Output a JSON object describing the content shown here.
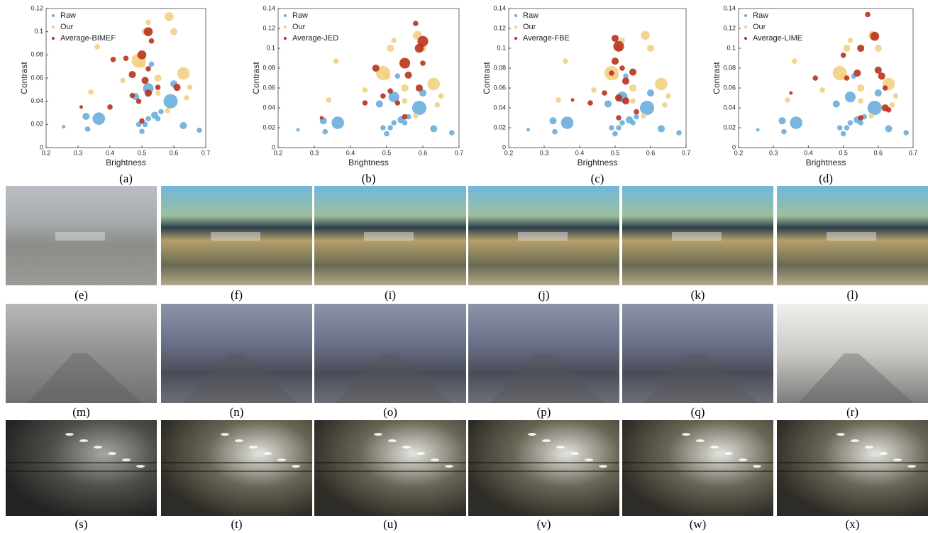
{
  "chart_data": [
    {
      "type": "scatter",
      "caption": "(a)",
      "xlabel": "Brightness",
      "ylabel": "Contrast",
      "xlim": [
        0.2,
        0.7
      ],
      "ylim": [
        0,
        0.12
      ],
      "xticks": [
        0.2,
        0.3,
        0.4,
        0.5,
        0.6,
        0.7
      ],
      "yticks": [
        0,
        0.02,
        0.04,
        0.06,
        0.08,
        0.1,
        0.12
      ],
      "series": [
        {
          "name": "Raw",
          "color": "#6aaedb",
          "x": [
            0.255,
            0.325,
            0.33,
            0.365,
            0.48,
            0.49,
            0.5,
            0.51,
            0.52,
            0.53,
            0.54,
            0.55,
            0.56,
            0.59,
            0.6,
            0.63,
            0.68,
            0.52
          ],
          "values": [
            0.018,
            0.027,
            0.016,
            0.025,
            0.044,
            0.02,
            0.014,
            0.02,
            0.051,
            0.072,
            0.028,
            0.025,
            0.031,
            0.04,
            0.055,
            0.019,
            0.015,
            0.025
          ],
          "sizes": [
            1,
            3,
            2,
            6,
            3,
            2,
            2,
            2,
            5,
            2,
            3,
            2,
            2,
            7,
            3,
            3,
            2,
            2
          ]
        },
        {
          "name": "Our",
          "color": "#f3d083",
          "x": [
            0.36,
            0.44,
            0.49,
            0.5,
            0.51,
            0.52,
            0.55,
            0.585,
            0.6,
            0.63,
            0.64,
            0.65,
            0.55,
            0.58,
            0.34
          ],
          "values": [
            0.087,
            0.058,
            0.075,
            0.072,
            0.1,
            0.108,
            0.06,
            0.113,
            0.1,
            0.064,
            0.043,
            0.052,
            0.047,
            0.032,
            0.048
          ],
          "sizes": [
            2,
            2,
            7,
            3,
            3,
            2,
            3,
            4,
            3,
            6,
            2,
            2,
            2,
            2,
            2
          ]
        },
        {
          "name": "Average-BIMEF",
          "color": "#b8321d",
          "x": [
            0.31,
            0.4,
            0.41,
            0.45,
            0.47,
            0.49,
            0.5,
            0.51,
            0.52,
            0.52,
            0.52,
            0.53,
            0.55,
            0.47,
            0.5,
            0.61
          ],
          "values": [
            0.035,
            0.035,
            0.076,
            0.077,
            0.045,
            0.04,
            0.08,
            0.058,
            0.047,
            0.068,
            0.1,
            0.092,
            0.052,
            0.063,
            0.023,
            0.052
          ],
          "sizes": [
            1,
            2,
            2,
            2,
            2,
            2,
            4,
            3,
            3,
            2,
            4,
            2,
            2,
            3,
            2,
            3
          ]
        }
      ]
    },
    {
      "type": "scatter",
      "caption": "(b)",
      "xlabel": "Brightness",
      "ylabel": "Contrast",
      "xlim": [
        0.2,
        0.7
      ],
      "ylim": [
        0,
        0.14
      ],
      "xticks": [
        0.2,
        0.3,
        0.4,
        0.5,
        0.6,
        0.7
      ],
      "yticks": [
        0,
        0.02,
        0.04,
        0.06,
        0.08,
        0.1,
        0.12,
        0.14
      ],
      "series": [
        {
          "name": "Raw",
          "color": "#6aaedb",
          "x": [
            0.255,
            0.325,
            0.33,
            0.365,
            0.48,
            0.49,
            0.5,
            0.51,
            0.52,
            0.53,
            0.54,
            0.55,
            0.56,
            0.59,
            0.6,
            0.63,
            0.68,
            0.52
          ],
          "values": [
            0.018,
            0.027,
            0.016,
            0.025,
            0.044,
            0.02,
            0.014,
            0.02,
            0.051,
            0.072,
            0.028,
            0.025,
            0.031,
            0.04,
            0.055,
            0.019,
            0.015,
            0.025
          ],
          "sizes": [
            1,
            3,
            2,
            6,
            3,
            2,
            2,
            2,
            5,
            2,
            3,
            2,
            2,
            7,
            3,
            3,
            2,
            2
          ]
        },
        {
          "name": "Our",
          "color": "#f3d083",
          "x": [
            0.36,
            0.44,
            0.49,
            0.5,
            0.51,
            0.52,
            0.55,
            0.585,
            0.6,
            0.63,
            0.64,
            0.65,
            0.55,
            0.58,
            0.34
          ],
          "values": [
            0.087,
            0.058,
            0.075,
            0.072,
            0.1,
            0.108,
            0.06,
            0.113,
            0.1,
            0.064,
            0.043,
            0.052,
            0.047,
            0.032,
            0.048
          ],
          "sizes": [
            2,
            2,
            7,
            3,
            3,
            2,
            3,
            4,
            3,
            6,
            2,
            2,
            2,
            2,
            2
          ]
        },
        {
          "name": "Average-JED",
          "color": "#b8321d",
          "x": [
            0.32,
            0.44,
            0.47,
            0.49,
            0.53,
            0.55,
            0.56,
            0.58,
            0.59,
            0.59,
            0.6,
            0.55,
            0.51,
            0.6
          ],
          "values": [
            0.03,
            0.045,
            0.08,
            0.052,
            0.045,
            0.085,
            0.073,
            0.125,
            0.1,
            0.06,
            0.107,
            0.031,
            0.057,
            0.085
          ],
          "sizes": [
            1,
            2,
            3,
            2,
            2,
            5,
            3,
            2,
            4,
            3,
            5,
            2,
            2,
            2
          ]
        }
      ]
    },
    {
      "type": "scatter",
      "caption": "(c)",
      "xlabel": "Brightness",
      "ylabel": "Contrast",
      "xlim": [
        0.2,
        0.7
      ],
      "ylim": [
        0,
        0.14
      ],
      "xticks": [
        0.2,
        0.3,
        0.4,
        0.5,
        0.6,
        0.7
      ],
      "yticks": [
        0,
        0.02,
        0.04,
        0.06,
        0.08,
        0.1,
        0.12,
        0.14
      ],
      "series": [
        {
          "name": "Raw",
          "color": "#6aaedb",
          "x": [
            0.255,
            0.325,
            0.33,
            0.365,
            0.48,
            0.49,
            0.5,
            0.51,
            0.52,
            0.53,
            0.54,
            0.55,
            0.56,
            0.59,
            0.6,
            0.63,
            0.68,
            0.52
          ],
          "values": [
            0.018,
            0.027,
            0.016,
            0.025,
            0.044,
            0.02,
            0.014,
            0.02,
            0.051,
            0.072,
            0.028,
            0.025,
            0.031,
            0.04,
            0.055,
            0.019,
            0.015,
            0.025
          ],
          "sizes": [
            1,
            3,
            2,
            6,
            3,
            2,
            2,
            2,
            5,
            2,
            3,
            2,
            2,
            7,
            3,
            3,
            2,
            2
          ]
        },
        {
          "name": "Our",
          "color": "#f3d083",
          "x": [
            0.36,
            0.44,
            0.49,
            0.5,
            0.51,
            0.52,
            0.55,
            0.585,
            0.6,
            0.63,
            0.64,
            0.65,
            0.55,
            0.58,
            0.34
          ],
          "values": [
            0.087,
            0.058,
            0.075,
            0.072,
            0.1,
            0.108,
            0.06,
            0.113,
            0.1,
            0.064,
            0.043,
            0.052,
            0.047,
            0.032,
            0.048
          ],
          "sizes": [
            2,
            2,
            7,
            3,
            3,
            2,
            3,
            4,
            3,
            6,
            2,
            2,
            2,
            2,
            2
          ]
        },
        {
          "name": "Average-FBE",
          "color": "#b8321d",
          "x": [
            0.38,
            0.43,
            0.47,
            0.49,
            0.5,
            0.5,
            0.51,
            0.51,
            0.52,
            0.53,
            0.55,
            0.56,
            0.51,
            0.53
          ],
          "values": [
            0.048,
            0.045,
            0.055,
            0.075,
            0.087,
            0.11,
            0.102,
            0.05,
            0.08,
            0.067,
            0.076,
            0.036,
            0.03,
            0.047
          ],
          "sizes": [
            1,
            2,
            2,
            2,
            3,
            3,
            5,
            3,
            2,
            3,
            3,
            2,
            2,
            3
          ]
        }
      ]
    },
    {
      "type": "scatter",
      "caption": "(d)",
      "xlabel": "Brightness",
      "ylabel": "Contrast",
      "xlim": [
        0.2,
        0.7
      ],
      "ylim": [
        0,
        0.14
      ],
      "xticks": [
        0.2,
        0.3,
        0.4,
        0.5,
        0.6,
        0.7
      ],
      "yticks": [
        0,
        0.02,
        0.04,
        0.06,
        0.08,
        0.1,
        0.12,
        0.14
      ],
      "series": [
        {
          "name": "Raw",
          "color": "#6aaedb",
          "x": [
            0.255,
            0.325,
            0.33,
            0.365,
            0.48,
            0.49,
            0.5,
            0.51,
            0.52,
            0.53,
            0.54,
            0.55,
            0.56,
            0.59,
            0.6,
            0.63,
            0.68,
            0.52
          ],
          "values": [
            0.018,
            0.027,
            0.016,
            0.025,
            0.044,
            0.02,
            0.014,
            0.02,
            0.051,
            0.072,
            0.028,
            0.025,
            0.031,
            0.04,
            0.055,
            0.019,
            0.015,
            0.025
          ],
          "sizes": [
            1,
            3,
            2,
            6,
            3,
            2,
            2,
            2,
            5,
            2,
            3,
            2,
            2,
            7,
            3,
            3,
            2,
            2
          ]
        },
        {
          "name": "Our",
          "color": "#f3d083",
          "x": [
            0.36,
            0.44,
            0.49,
            0.5,
            0.51,
            0.52,
            0.55,
            0.585,
            0.6,
            0.63,
            0.64,
            0.65,
            0.55,
            0.58,
            0.34
          ],
          "values": [
            0.087,
            0.058,
            0.075,
            0.072,
            0.1,
            0.108,
            0.06,
            0.113,
            0.1,
            0.064,
            0.043,
            0.052,
            0.047,
            0.032,
            0.048
          ],
          "sizes": [
            2,
            2,
            7,
            3,
            3,
            2,
            3,
            4,
            3,
            6,
            2,
            2,
            2,
            2,
            2
          ]
        },
        {
          "name": "Average-LIME",
          "color": "#b8321d",
          "x": [
            0.35,
            0.42,
            0.5,
            0.51,
            0.54,
            0.55,
            0.57,
            0.59,
            0.6,
            0.61,
            0.62,
            0.62,
            0.63,
            0.55
          ],
          "values": [
            0.055,
            0.07,
            0.093,
            0.07,
            0.075,
            0.1,
            0.134,
            0.112,
            0.078,
            0.072,
            0.06,
            0.04,
            0.038,
            0.03
          ],
          "sizes": [
            1,
            2,
            2,
            2,
            3,
            3,
            2,
            4,
            3,
            3,
            2,
            3,
            2,
            2
          ]
        }
      ]
    }
  ],
  "image_captions": [
    "(e)",
    "(f)",
    "(i)",
    "(j)",
    "(k)",
    "(l)",
    "(m)",
    "(n)",
    "(o)",
    "(p)",
    "(q)",
    "(r)",
    "(s)",
    "(t)",
    "(u)",
    "(v)",
    "(w)",
    "(x)"
  ]
}
